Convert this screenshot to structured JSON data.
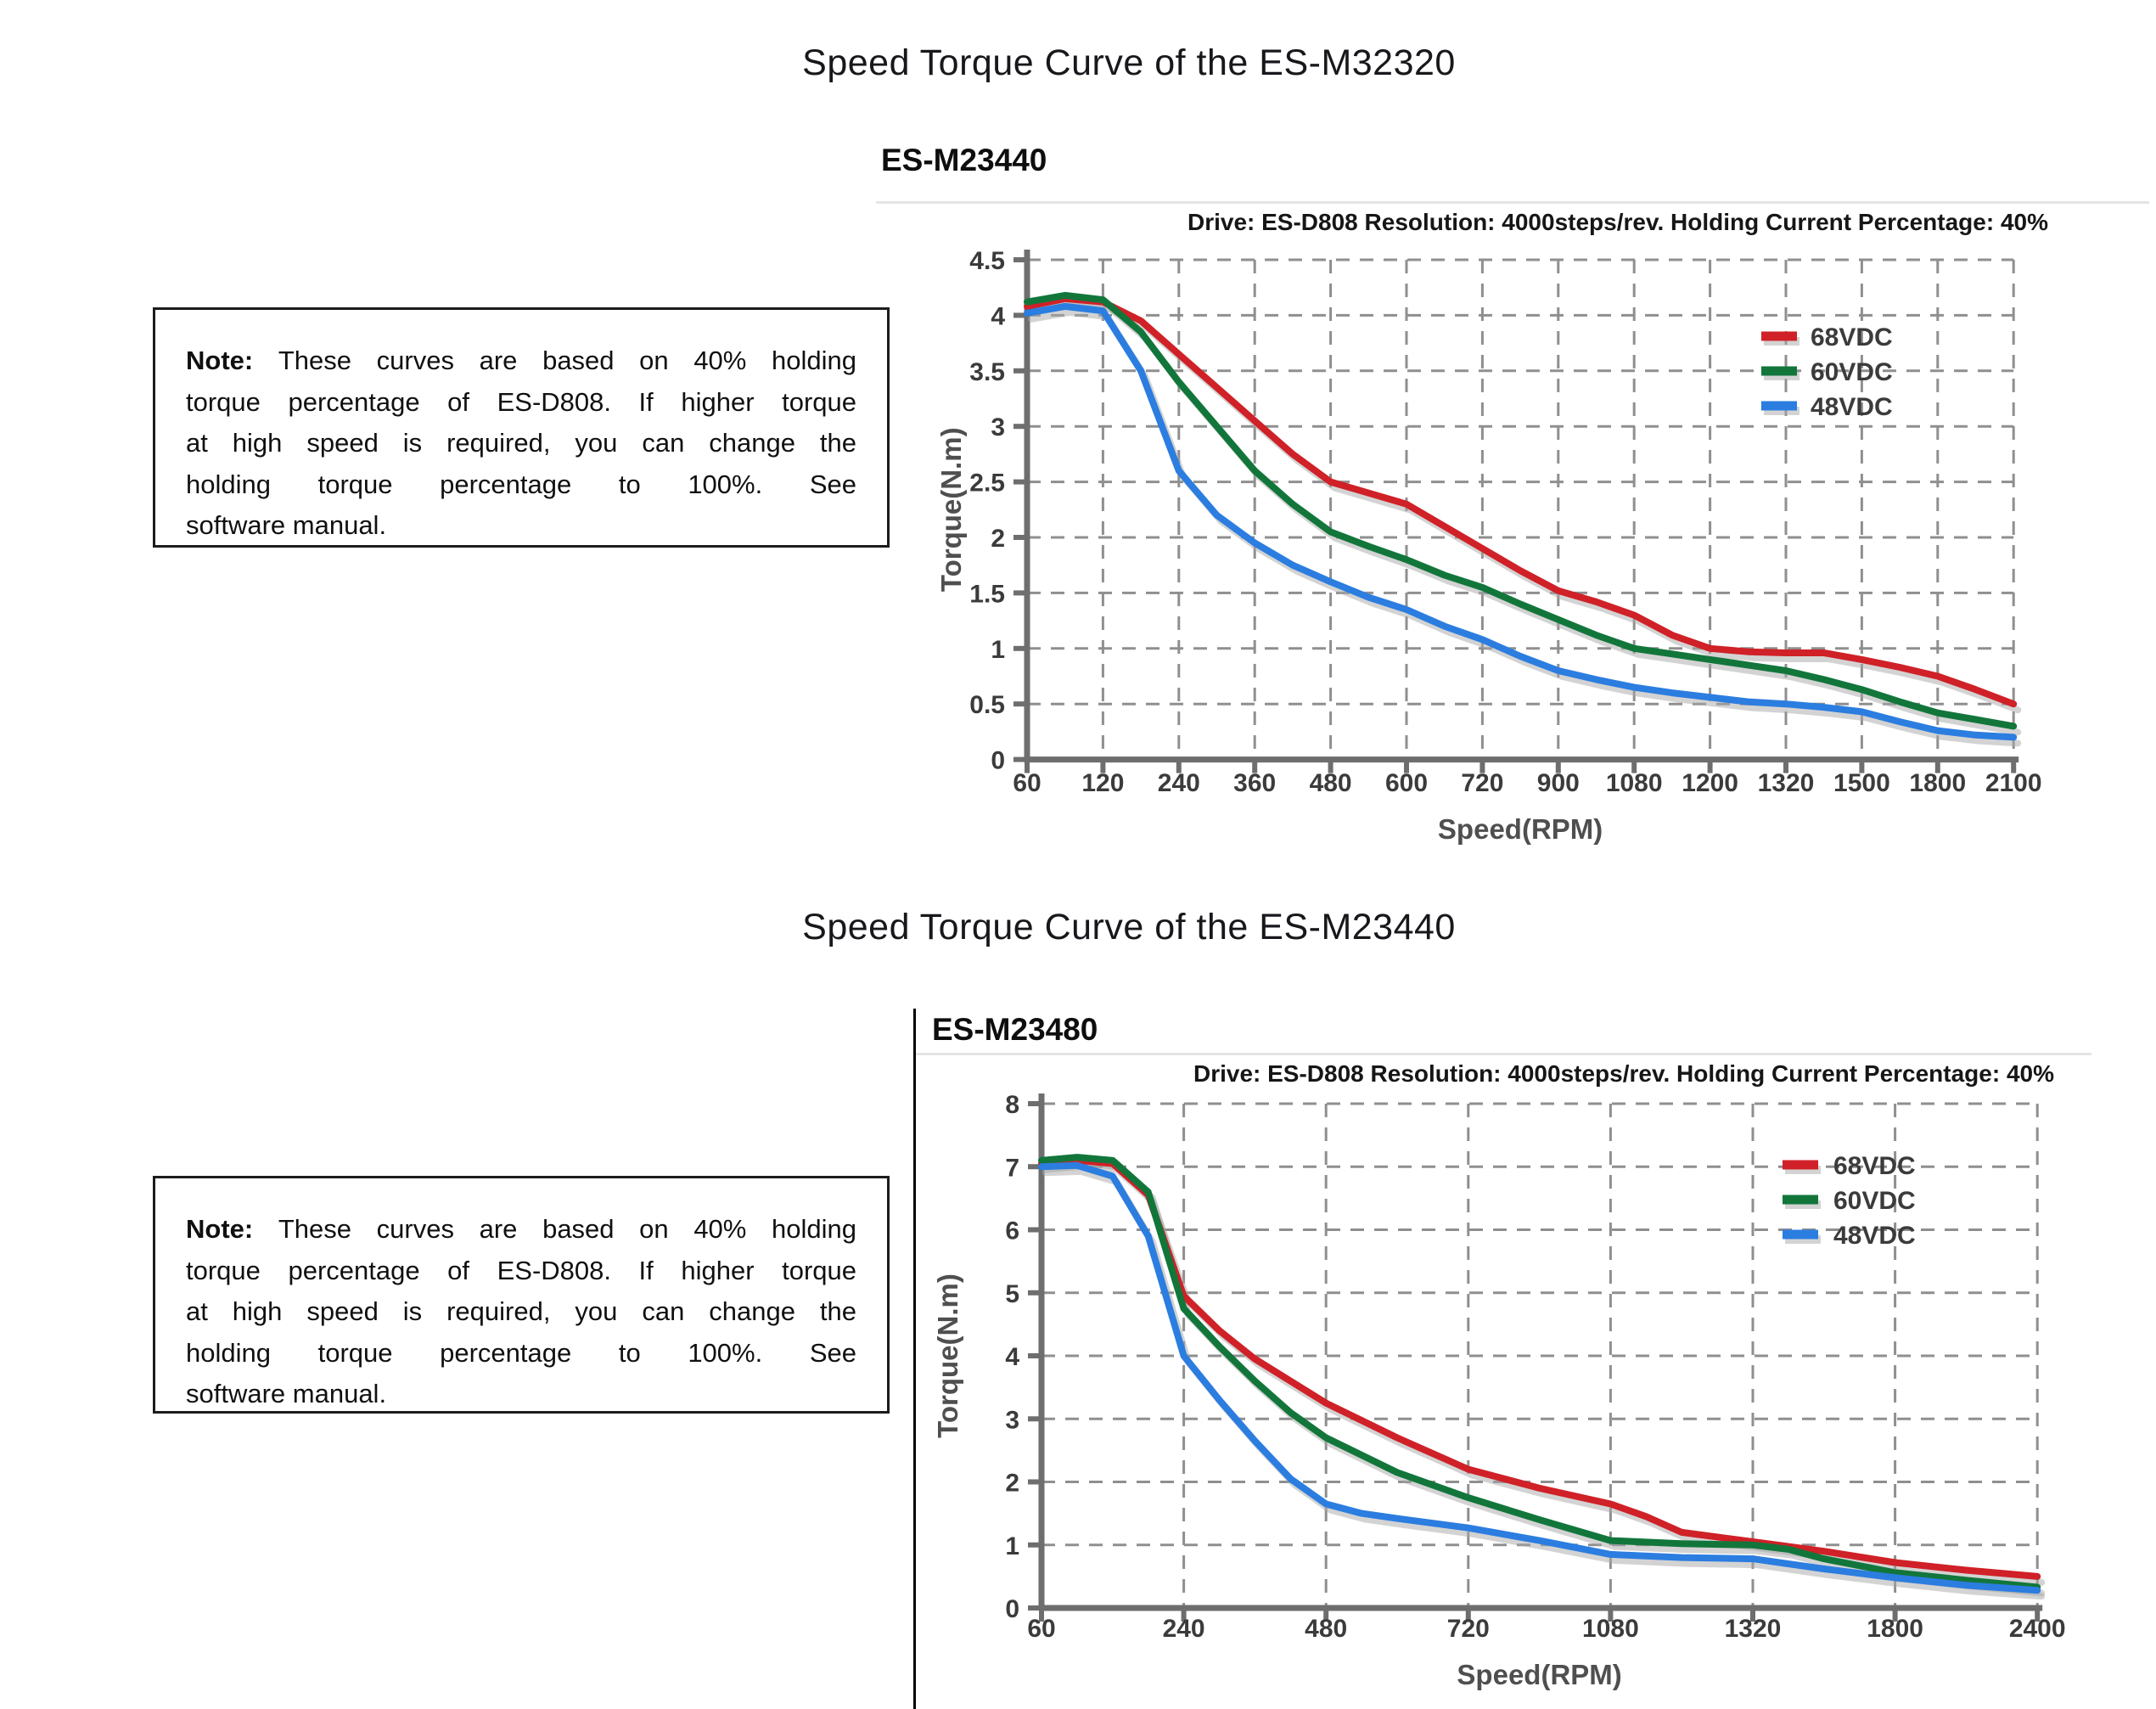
{
  "page": {
    "title_top": "Speed Torque Curve of the ES-M32320",
    "title_middle": "Speed Torque Curve of the ES-M23440"
  },
  "note": {
    "label": "Note:",
    "lines": [
      "These curves are based on 40% holding",
      "torque percentage of ES-D808. If higher torque",
      "at high speed is required, you can change the",
      "holding torque percentage to 100%. See",
      "software manual."
    ]
  },
  "chart_data": [
    {
      "type": "line",
      "title": "ES-M23440",
      "subtitle": "Drive: ES-D808 Resolution: 4000steps/rev. Holding Current Percentage: 40%",
      "xlabel": "Speed(RPM)",
      "ylabel": "Torque(N.m)",
      "x_ticks": [
        "60",
        "120",
        "240",
        "360",
        "480",
        "600",
        "720",
        "900",
        "1080",
        "1200",
        "1320",
        "1500",
        "1800",
        "2100"
      ],
      "ylim": [
        0,
        4.5
      ],
      "y_tick_step": 0.5,
      "grid": true,
      "legend_position": "top-right",
      "series": [
        {
          "name": "68VDC",
          "color": "#cf2127",
          "points": [
            [
              0,
              4.08
            ],
            [
              0.5,
              4.15
            ],
            [
              1,
              4.12
            ],
            [
              1.5,
              3.95
            ],
            [
              2,
              3.65
            ],
            [
              2.5,
              3.35
            ],
            [
              3,
              3.05
            ],
            [
              3.5,
              2.75
            ],
            [
              4,
              2.5
            ],
            [
              4.5,
              2.4
            ],
            [
              5,
              2.3
            ],
            [
              5.5,
              2.1
            ],
            [
              6,
              1.9
            ],
            [
              6.5,
              1.7
            ],
            [
              7,
              1.52
            ],
            [
              7.5,
              1.42
            ],
            [
              8,
              1.3
            ],
            [
              8.5,
              1.12
            ],
            [
              9,
              1.0
            ],
            [
              9.5,
              0.97
            ],
            [
              10,
              0.96
            ],
            [
              10.5,
              0.96
            ],
            [
              11,
              0.9
            ],
            [
              11.5,
              0.83
            ],
            [
              12,
              0.75
            ],
            [
              12.5,
              0.63
            ],
            [
              13,
              0.5
            ]
          ]
        },
        {
          "name": "60VDC",
          "color": "#12763b",
          "points": [
            [
              0,
              4.12
            ],
            [
              0.5,
              4.18
            ],
            [
              1,
              4.14
            ],
            [
              1.5,
              3.85
            ],
            [
              2,
              3.4
            ],
            [
              2.5,
              3.0
            ],
            [
              3,
              2.6
            ],
            [
              3.5,
              2.3
            ],
            [
              4,
              2.05
            ],
            [
              4.5,
              1.92
            ],
            [
              5,
              1.8
            ],
            [
              5.5,
              1.66
            ],
            [
              6,
              1.55
            ],
            [
              6.5,
              1.4
            ],
            [
              7,
              1.26
            ],
            [
              7.5,
              1.12
            ],
            [
              8,
              1.0
            ],
            [
              8.5,
              0.95
            ],
            [
              9,
              0.9
            ],
            [
              9.5,
              0.85
            ],
            [
              10,
              0.8
            ],
            [
              10.5,
              0.72
            ],
            [
              11,
              0.63
            ],
            [
              11.5,
              0.52
            ],
            [
              12,
              0.42
            ],
            [
              12.5,
              0.36
            ],
            [
              13,
              0.3
            ]
          ]
        },
        {
          "name": "48VDC",
          "color": "#2b7de0",
          "points": [
            [
              0,
              4.02
            ],
            [
              0.5,
              4.08
            ],
            [
              1,
              4.04
            ],
            [
              1.5,
              3.5
            ],
            [
              2,
              2.6
            ],
            [
              2.5,
              2.2
            ],
            [
              3,
              1.95
            ],
            [
              3.5,
              1.75
            ],
            [
              4,
              1.6
            ],
            [
              4.5,
              1.46
            ],
            [
              5,
              1.35
            ],
            [
              5.5,
              1.2
            ],
            [
              6,
              1.08
            ],
            [
              6.5,
              0.93
            ],
            [
              7,
              0.8
            ],
            [
              7.5,
              0.72
            ],
            [
              8,
              0.65
            ],
            [
              8.5,
              0.6
            ],
            [
              9,
              0.56
            ],
            [
              9.5,
              0.52
            ],
            [
              10,
              0.5
            ],
            [
              10.5,
              0.47
            ],
            [
              11,
              0.43
            ],
            [
              11.5,
              0.34
            ],
            [
              12,
              0.26
            ],
            [
              12.5,
              0.22
            ],
            [
              13,
              0.2
            ]
          ]
        }
      ]
    },
    {
      "type": "line",
      "title": "ES-M23480",
      "subtitle": "Drive: ES-D808 Resolution: 4000steps/rev. Holding Current Percentage: 40%",
      "xlabel": "Speed(RPM)",
      "ylabel": "Torque(N.m)",
      "x_ticks": [
        "60",
        "240",
        "480",
        "720",
        "1080",
        "1320",
        "1800",
        "2400"
      ],
      "ylim": [
        0,
        8
      ],
      "y_tick_step": 1,
      "grid": true,
      "legend_position": "top-right",
      "series": [
        {
          "name": "68VDC",
          "color": "#cf2127",
          "points": [
            [
              0,
              7.05
            ],
            [
              0.25,
              7.1
            ],
            [
              0.5,
              7.05
            ],
            [
              0.75,
              6.55
            ],
            [
              1,
              4.95
            ],
            [
              1.25,
              4.4
            ],
            [
              1.5,
              3.95
            ],
            [
              1.75,
              3.6
            ],
            [
              2,
              3.25
            ],
            [
              2.5,
              2.7
            ],
            [
              3,
              2.2
            ],
            [
              3.5,
              1.9
            ],
            [
              4,
              1.65
            ],
            [
              4.25,
              1.45
            ],
            [
              4.5,
              1.2
            ],
            [
              5,
              1.05
            ],
            [
              5.5,
              0.9
            ],
            [
              6,
              0.72
            ],
            [
              6.5,
              0.6
            ],
            [
              7,
              0.5
            ]
          ]
        },
        {
          "name": "60VDC",
          "color": "#12763b",
          "points": [
            [
              0,
              7.1
            ],
            [
              0.25,
              7.15
            ],
            [
              0.5,
              7.1
            ],
            [
              0.75,
              6.6
            ],
            [
              1,
              4.75
            ],
            [
              1.25,
              4.15
            ],
            [
              1.5,
              3.6
            ],
            [
              1.75,
              3.1
            ],
            [
              2,
              2.7
            ],
            [
              2.5,
              2.15
            ],
            [
              3,
              1.75
            ],
            [
              3.5,
              1.4
            ],
            [
              4,
              1.07
            ],
            [
              4.5,
              1.02
            ],
            [
              5,
              1.0
            ],
            [
              5.25,
              0.93
            ],
            [
              5.5,
              0.78
            ],
            [
              6,
              0.56
            ],
            [
              6.5,
              0.44
            ],
            [
              7,
              0.33
            ]
          ]
        },
        {
          "name": "48VDC",
          "color": "#2b7de0",
          "points": [
            [
              0,
              7.0
            ],
            [
              0.25,
              7.02
            ],
            [
              0.5,
              6.85
            ],
            [
              0.75,
              5.9
            ],
            [
              1,
              4.0
            ],
            [
              1.25,
              3.3
            ],
            [
              1.5,
              2.65
            ],
            [
              1.75,
              2.05
            ],
            [
              2,
              1.65
            ],
            [
              2.25,
              1.5
            ],
            [
              2.5,
              1.42
            ],
            [
              3,
              1.27
            ],
            [
              3.5,
              1.07
            ],
            [
              4,
              0.85
            ],
            [
              4.5,
              0.8
            ],
            [
              5,
              0.78
            ],
            [
              5.5,
              0.62
            ],
            [
              6,
              0.48
            ],
            [
              6.5,
              0.36
            ],
            [
              7,
              0.28
            ]
          ]
        }
      ]
    }
  ]
}
